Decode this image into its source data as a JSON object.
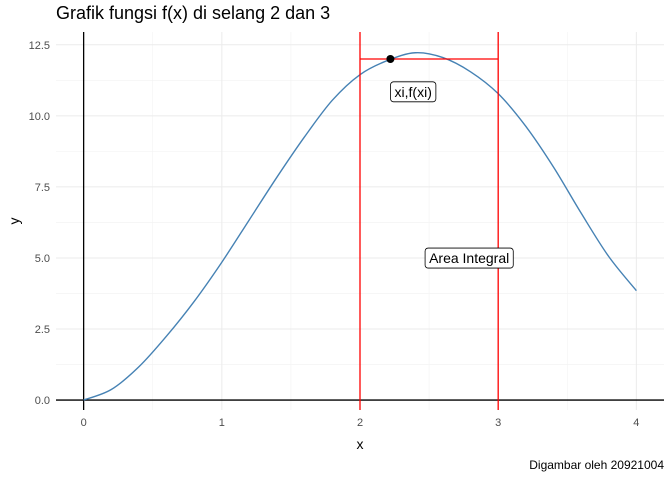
{
  "chart_data": {
    "type": "line",
    "title": "Grafik fungsi f(x) di selang 2 dan 3",
    "xlabel": "x",
    "ylabel": "y",
    "caption": "Digambar oleh 20921004",
    "xlim": [
      -0.2,
      4.2
    ],
    "ylim": [
      -0.35,
      12.95
    ],
    "x_ticks": [
      0,
      1,
      2,
      3,
      4
    ],
    "y_ticks": [
      0.0,
      2.5,
      5.0,
      7.5,
      10.0,
      12.5
    ],
    "x_tick_labels": [
      "0",
      "1",
      "2",
      "3",
      "4"
    ],
    "y_tick_labels": [
      "0.0",
      "2.5",
      "5.0",
      "7.5",
      "10.0",
      "12.5"
    ],
    "grid": true,
    "series": [
      {
        "color": "#4682B4",
        "x": [
          0,
          0.2,
          0.4,
          0.6,
          0.8,
          1.0,
          1.2,
          1.4,
          1.6,
          1.8,
          2.0,
          2.2,
          2.4,
          2.6,
          2.8,
          3.0,
          3.2,
          3.4,
          3.6,
          3.8,
          4.0
        ],
        "y": [
          0.0,
          0.37,
          1.17,
          2.25,
          3.47,
          4.85,
          6.35,
          7.85,
          9.27,
          10.55,
          11.45,
          11.95,
          12.22,
          12.05,
          11.55,
          10.78,
          9.63,
          8.2,
          6.58,
          5.05,
          3.85
        ]
      }
    ],
    "integration_interval": {
      "a": 2,
      "b": 3,
      "color": "#FF0000"
    },
    "point": {
      "x": 2.22,
      "y": 12.0,
      "label": "xi,f(xi)"
    },
    "annotations": [
      {
        "text": "xi,f(xi)",
        "x": 2.25,
        "y": 10.8
      },
      {
        "text": "Area Integral",
        "x": 2.5,
        "y": 4.95
      }
    ]
  }
}
